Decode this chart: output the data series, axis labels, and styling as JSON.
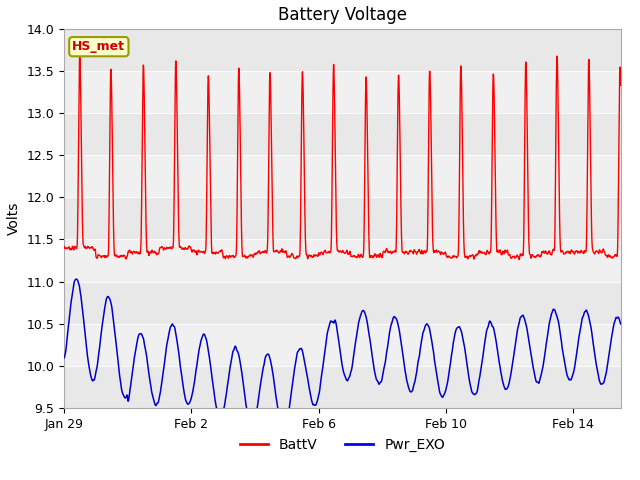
{
  "title": "Battery Voltage",
  "ylabel": "Volts",
  "ylim": [
    9.5,
    14.0
  ],
  "yticks": [
    9.5,
    10.0,
    10.5,
    11.0,
    11.5,
    12.0,
    12.5,
    13.0,
    13.5,
    14.0
  ],
  "xtick_labels": [
    "Jan 29",
    "Feb 2",
    "Feb 6",
    "Feb 10",
    "Feb 14"
  ],
  "xtick_days": [
    0,
    4,
    8,
    12,
    16
  ],
  "legend_labels": [
    "BattV",
    "Pwr_EXO"
  ],
  "legend_colors": [
    "#ff0000",
    "#0000ff"
  ],
  "box_label": "HS_met",
  "box_facecolor": "#ffffcc",
  "box_edgecolor": "#999900",
  "box_textcolor": "#cc0000",
  "red_line_color": "#ff0000",
  "blue_line_color": "#0000cc",
  "title_fontsize": 12,
  "axis_label_fontsize": 10,
  "tick_fontsize": 9,
  "band_colors": [
    "#e8e8e8",
    "#f0f0f0"
  ],
  "total_days": 17.5
}
